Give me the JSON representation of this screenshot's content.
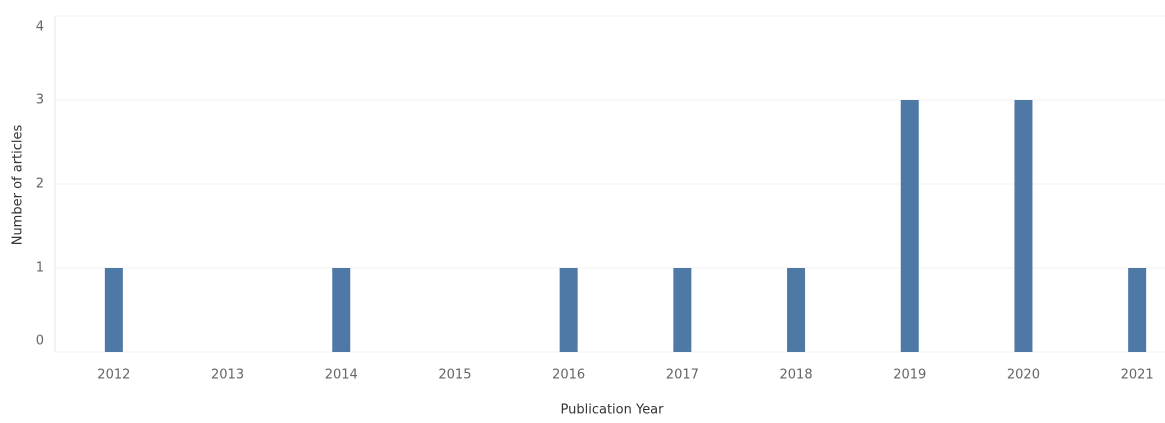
{
  "chart_data": {
    "type": "bar",
    "x_label": "Publication Year",
    "y_label": "Number of articles",
    "categories": [
      "2012",
      "2013",
      "2014",
      "2015",
      "2016",
      "2017",
      "2018",
      "2019",
      "2020",
      "2021"
    ],
    "values": [
      1,
      0,
      1,
      0,
      1,
      1,
      1,
      3,
      3,
      1
    ],
    "color": "#4e79a7",
    "ylim": [
      0,
      4
    ],
    "yticks": [
      0,
      1,
      2,
      3,
      4
    ],
    "grid": true
  }
}
